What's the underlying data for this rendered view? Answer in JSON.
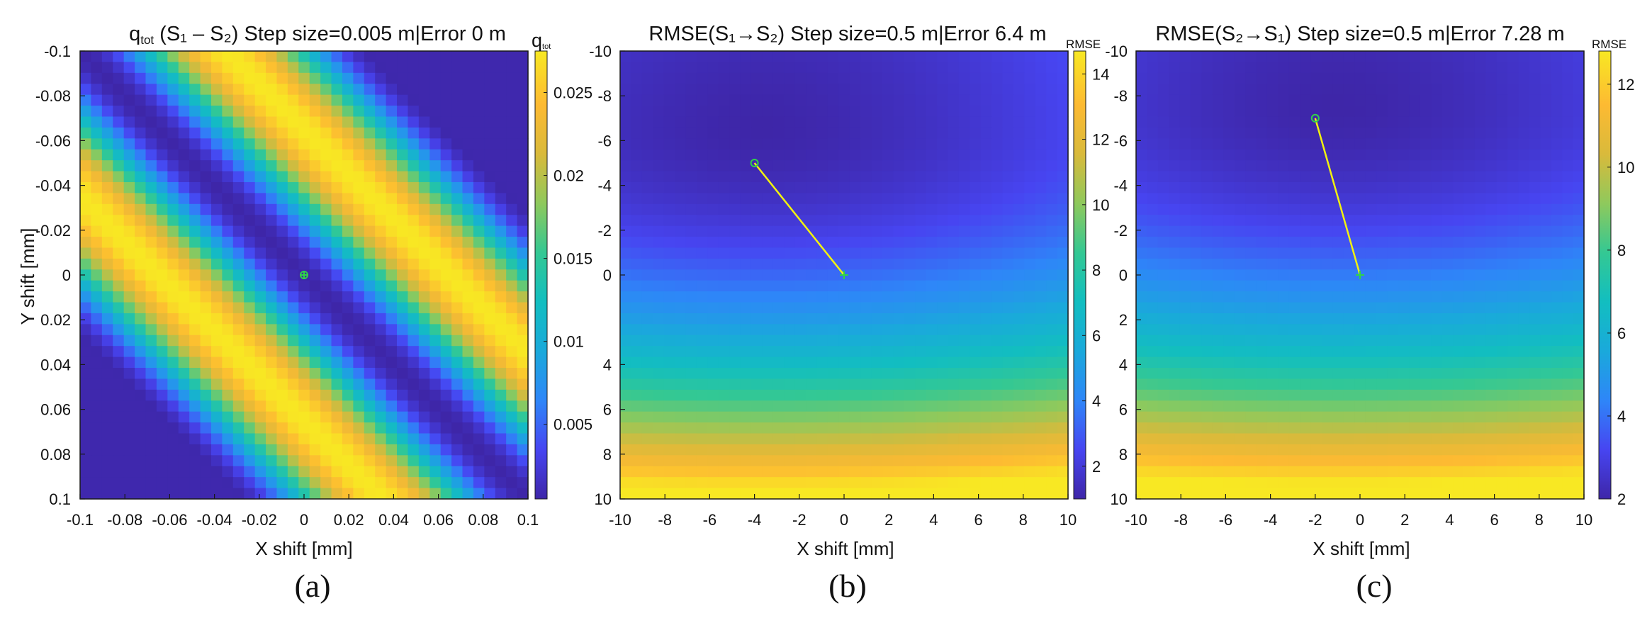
{
  "figure": {
    "panels": [
      {
        "id": "a",
        "label": "(a)",
        "title_pre": "q",
        "title_sub": "tot",
        "title_rest": " (S₁ – S₂) Step size=0.005 m|Error 0 m",
        "colorbar_title_main": "q",
        "colorbar_title_sub": "tot",
        "colormap": [
          "#3e26a8",
          "#4745f1",
          "#2e86f8",
          "#1aa9db",
          "#12bec0",
          "#34c893",
          "#8fc95c",
          "#d9ba3b",
          "#fdba32",
          "#f8e823"
        ]
      },
      {
        "id": "b",
        "label": "(b)",
        "title": "RMSE(S₁→S₂) Step size=0.5 m|Error 6.4 m",
        "colorbar_title": "RMSE",
        "marker_color": "#2fd34a",
        "line_color": "#f2f20e"
      },
      {
        "id": "c",
        "label": "(c)",
        "title": "RMSE(S₂→S₁) Step size=0.5 m|Error 7.28 m",
        "colorbar_title": "RMSE",
        "marker_color": "#2fd34a",
        "line_color": "#f2f20e"
      }
    ]
  },
  "chart_data": [
    {
      "type": "heatmap",
      "title": "qtot (S1 – S2) Step size=0.005 m|Error 0 m",
      "xlabel": "X shift [mm]",
      "ylabel": "Y shift [mm]",
      "xlim": [
        -0.1,
        0.1
      ],
      "ylim": [
        -0.1,
        0.1
      ],
      "y_direction": "reversed",
      "xticks": [
        "-0.1",
        "-0.08",
        "-0.06",
        "-0.04",
        "-0.02",
        "0",
        "0.02",
        "0.04",
        "0.06",
        "0.08",
        "0.1"
      ],
      "yticks": [
        "-0.1",
        "-0.08",
        "-0.06",
        "-0.04",
        "-0.02",
        "0",
        "0.02",
        "0.04",
        "0.06",
        "0.08",
        "0.1"
      ],
      "colorbar": {
        "label": "qtot",
        "ticks": [
          "0.025",
          "0.02",
          "0.015",
          "0.01",
          "0.005"
        ],
        "tick_values": [
          0.025,
          0.02,
          0.015,
          0.01,
          0.005
        ],
        "range": [
          0.0005,
          0.0275
        ]
      },
      "grid_cells": 41,
      "pattern": "diagonal stripes along x = y: minimum on the x = y diagonal, yellow maxima at |x − y| ≈ 0.065, minima again near |x − y| ≈ 0.13; value range ≈ 0.0005 to 0.0275",
      "best_estimate": {
        "x": 0,
        "y": 0
      },
      "true_position": {
        "x": 0,
        "y": 0
      }
    },
    {
      "type": "heatmap",
      "title": "RMSE(S1→S2) Step size=0.5 m|Error 6.4 m",
      "xlabel": "X shift [mm]",
      "ylabel": "",
      "xlim": [
        -10,
        10
      ],
      "ylim": [
        -10,
        10
      ],
      "y_direction": "reversed",
      "xticks": [
        "-10",
        "-8",
        "-6",
        "-4",
        "-2",
        "0",
        "2",
        "4",
        "6",
        "8",
        "10"
      ],
      "yticks": [
        "-10",
        "-8",
        "-6",
        "-4",
        "-2",
        "0",
        "4",
        "6",
        "8",
        "10"
      ],
      "colorbar": {
        "label": "RMSE",
        "ticks": [
          "14",
          "12",
          "10",
          "8",
          "6",
          "4",
          "2"
        ],
        "tick_values": [
          14,
          12,
          10,
          8,
          6,
          4,
          2
        ],
        "range": [
          1,
          14.7
        ]
      },
      "grid_cells": 41,
      "pattern": "bowl-shaped surface with minimum ≈ 1 near (-3.8, -6.5), rising to ≈ 14.7 along the bottom edge (Y = 10)",
      "minimum": {
        "x": -3.8,
        "y": -6.5,
        "value": 1.0
      },
      "estimated_point": {
        "x": -4,
        "y": -5
      },
      "true_point": {
        "x": 0,
        "y": 0
      },
      "error_m": 6.4
    },
    {
      "type": "heatmap",
      "title": "RMSE(S2→S1) Step size=0.5 m|Error 7.28 m",
      "xlabel": "X shift [mm]",
      "ylabel": "",
      "xlim": [
        -10,
        10
      ],
      "ylim": [
        -10,
        10
      ],
      "y_direction": "reversed",
      "xticks": [
        "-10",
        "-8",
        "-6",
        "-4",
        "-2",
        "0",
        "2",
        "4",
        "6",
        "8",
        "10"
      ],
      "yticks": [
        "-10",
        "-8",
        "-6",
        "-4",
        "-2",
        "0",
        "2",
        "4",
        "6",
        "8",
        "10"
      ],
      "colorbar": {
        "label": "RMSE",
        "ticks": [
          "12",
          "10",
          "8",
          "6",
          "4",
          "2"
        ],
        "tick_values": [
          12,
          10,
          8,
          6,
          4,
          2
        ],
        "range": [
          2,
          12.8
        ]
      },
      "grid_cells": 41,
      "pattern": "bowl-shaped surface with minimum ≈ 2 near (-1, -7.5), rising to ≈ 12.8 along the bottom edge (Y = 10)",
      "minimum": {
        "x": -1.0,
        "y": -7.5,
        "value": 2.0
      },
      "estimated_point": {
        "x": -2,
        "y": -7
      },
      "true_point": {
        "x": 0,
        "y": 0
      },
      "error_m": 7.28
    }
  ]
}
